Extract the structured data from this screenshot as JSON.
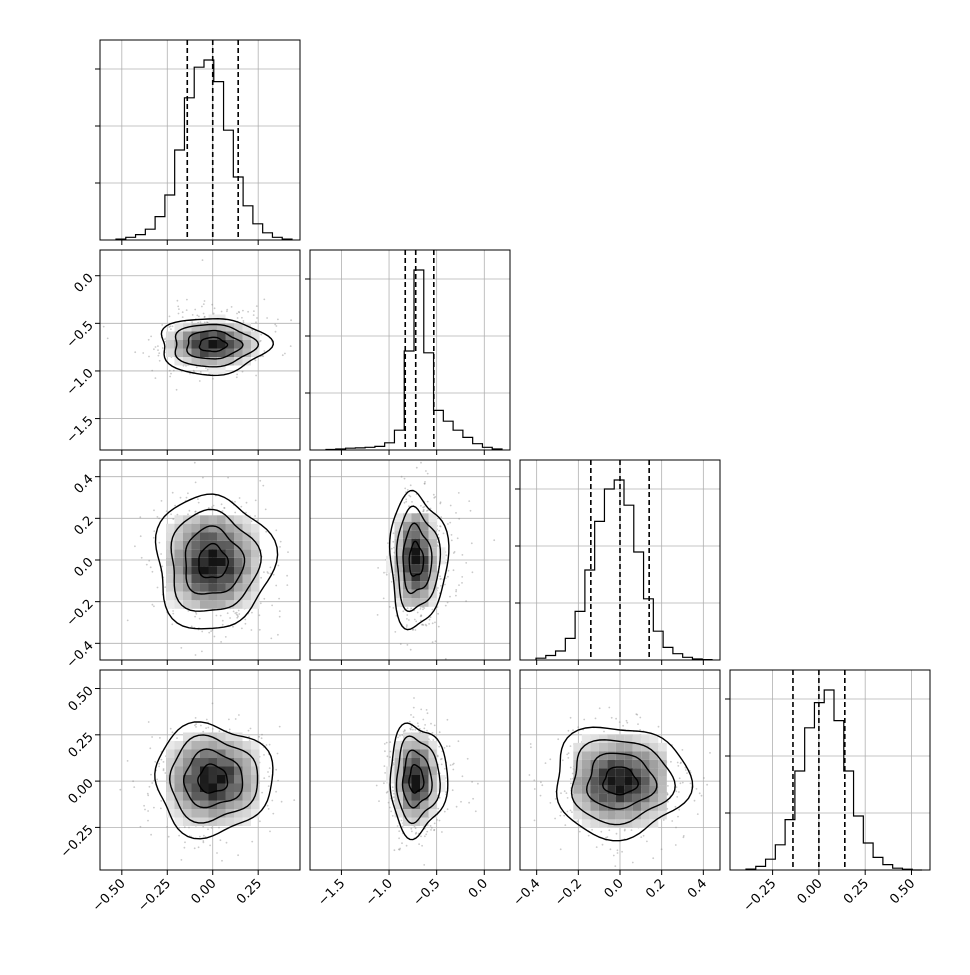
{
  "chart_data": {
    "type": "corner",
    "grid": true,
    "legend": "none",
    "parameters": [
      {
        "ticks": [
          -0.5,
          -0.25,
          0.0,
          0.25
        ],
        "tick_labels": [
          "−0.50",
          "−0.25",
          "0.00",
          "0.25"
        ],
        "range": [
          -0.62,
          0.48
        ],
        "quantiles": [
          -0.14,
          0.0,
          0.14
        ]
      },
      {
        "ticks": [
          -1.5,
          -1.0,
          -0.5,
          0.0
        ],
        "tick_labels": [
          "−1.5",
          "−1.0",
          "−0.5",
          "0.0"
        ],
        "range": [
          -1.83,
          0.27
        ],
        "quantiles": [
          -0.83,
          -0.72,
          -0.53
        ]
      },
      {
        "ticks": [
          -0.4,
          -0.2,
          0.0,
          0.2,
          0.4
        ],
        "tick_labels": [
          "−0.4",
          "−0.2",
          "0.0",
          "0.2",
          "0.4"
        ],
        "range": [
          -0.48,
          0.48
        ],
        "quantiles": [
          -0.14,
          0.0,
          0.14
        ]
      },
      {
        "ticks": [
          -0.25,
          0.0,
          0.25,
          0.5
        ],
        "tick_labels": [
          "−0.25",
          "0.00",
          "0.25",
          "0.50"
        ],
        "range": [
          -0.48,
          0.6
        ],
        "quantiles": [
          -0.14,
          0.0,
          0.14
        ]
      }
    ],
    "histograms": [
      {
        "counts": [
          0.005,
          0.015,
          0.03,
          0.06,
          0.13,
          0.25,
          0.5,
          0.79,
          0.96,
          1.0,
          0.88,
          0.61,
          0.35,
          0.19,
          0.09,
          0.04,
          0.015,
          0.005
        ]
      },
      {
        "counts": [
          0.003,
          0.006,
          0.01,
          0.012,
          0.015,
          0.02,
          0.04,
          0.11,
          0.55,
          1.0,
          0.54,
          0.22,
          0.16,
          0.11,
          0.07,
          0.035,
          0.015,
          0.006
        ]
      },
      {
        "counts": [
          0.01,
          0.025,
          0.05,
          0.12,
          0.27,
          0.5,
          0.77,
          0.95,
          1.0,
          0.86,
          0.6,
          0.34,
          0.16,
          0.07,
          0.035,
          0.015,
          0.006,
          0.002
        ]
      },
      {
        "counts": [
          0.005,
          0.02,
          0.06,
          0.14,
          0.28,
          0.55,
          0.79,
          0.93,
          1.0,
          0.83,
          0.55,
          0.3,
          0.15,
          0.07,
          0.03,
          0.01,
          0.004,
          0.0
        ]
      }
    ],
    "joint_panels": [
      {
        "row": 1,
        "col": 0,
        "mean": [
          0.0,
          -0.72
        ],
        "sd": [
          0.13,
          0.12
        ],
        "tail": 0.15
      },
      {
        "row": 2,
        "col": 0,
        "mean": [
          0.0,
          -0.01
        ],
        "sd": [
          0.14,
          0.14
        ],
        "tail": 0.0
      },
      {
        "row": 2,
        "col": 1,
        "mean": [
          -0.72,
          0.0
        ],
        "sd": [
          0.12,
          0.14
        ],
        "tail": 0.15
      },
      {
        "row": 3,
        "col": 0,
        "mean": [
          0.0,
          0.01
        ],
        "sd": [
          0.14,
          0.13
        ],
        "tail": 0.0
      },
      {
        "row": 3,
        "col": 1,
        "mean": [
          -0.72,
          0.01
        ],
        "sd": [
          0.12,
          0.13
        ],
        "tail": 0.15
      },
      {
        "row": 3,
        "col": 2,
        "mean": [
          0.0,
          0.0
        ],
        "sd": [
          0.14,
          0.13
        ],
        "tail": 0.0
      }
    ],
    "contour_levels_sigma": [
      0.5,
      1.0,
      1.5,
      2.0
    ]
  }
}
